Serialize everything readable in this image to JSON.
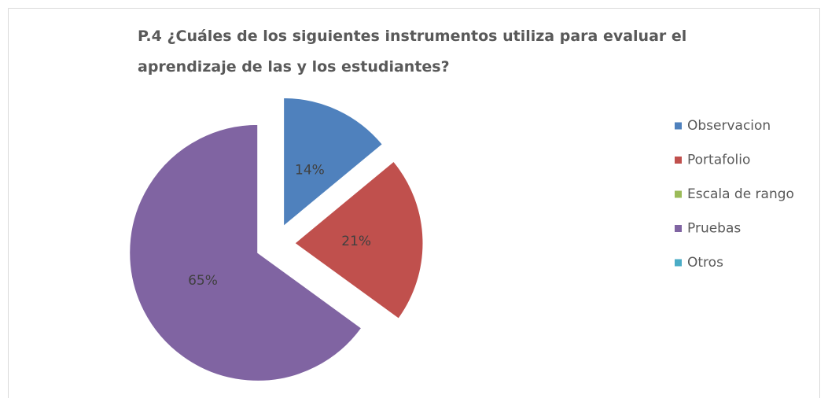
{
  "chart_data": {
    "type": "pie",
    "title": "P.4 ¿Cuáles de los siguientes instrumentos utiliza para evaluar el aprendizaje de las y los estudiantes?",
    "categories": [
      "Observacion",
      "Portafolio",
      "Escala de rango",
      "Pruebas",
      "Otros"
    ],
    "values": [
      14,
      21,
      0,
      65,
      0
    ],
    "value_labels": [
      "14%",
      "21%",
      null,
      "65%",
      null
    ],
    "colors": [
      "#4f81bd",
      "#c0504d",
      "#9bbb59",
      "#8064a2",
      "#4bacc6"
    ],
    "legend": "right"
  }
}
